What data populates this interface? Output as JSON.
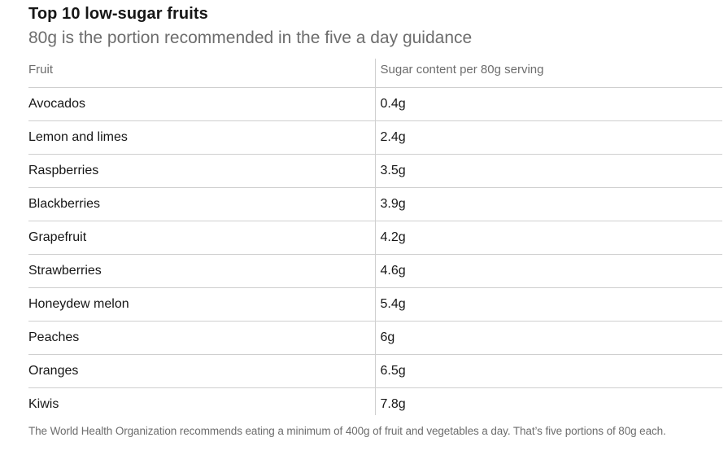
{
  "colors": {
    "ink": "#161616",
    "muted": "#6d6d6d",
    "line": "#cfcfcf"
  },
  "header": {
    "title": "Top 10 low-sugar fruits",
    "subtitle": "80g is the portion recommended in the five a day guidance"
  },
  "table": {
    "columns": [
      "Fruit",
      "Sugar content per 80g serving"
    ],
    "rows": [
      {
        "fruit": "Avocados",
        "sugar": "0.4g"
      },
      {
        "fruit": "Lemon and limes",
        "sugar": "2.4g"
      },
      {
        "fruit": "Raspberries",
        "sugar": "3.5g"
      },
      {
        "fruit": "Blackberries",
        "sugar": "3.9g"
      },
      {
        "fruit": "Grapefruit",
        "sugar": "4.2g"
      },
      {
        "fruit": "Strawberries",
        "sugar": "4.6g"
      },
      {
        "fruit": "Honeydew melon",
        "sugar": "5.4g"
      },
      {
        "fruit": "Peaches",
        "sugar": "6g"
      },
      {
        "fruit": "Oranges",
        "sugar": "6.5g"
      },
      {
        "fruit": "Kiwis",
        "sugar": "7.8g"
      }
    ]
  },
  "footer": {
    "note": "The World Health Organization recommends eating a minimum of 400g of fruit and vegetables a day. That’s five portions of 80g each."
  },
  "chart_data": {
    "type": "table",
    "title": "Top 10 low-sugar fruits",
    "subtitle": "80g is the portion recommended in the five a day guidance",
    "columns": [
      "Fruit",
      "Sugar content per 80g serving"
    ],
    "categories": [
      "Avocados",
      "Lemon and limes",
      "Raspberries",
      "Blackberries",
      "Grapefruit",
      "Strawberries",
      "Honeydew melon",
      "Peaches",
      "Oranges",
      "Kiwis"
    ],
    "values": [
      0.4,
      2.4,
      3.5,
      3.9,
      4.2,
      4.6,
      5.4,
      6,
      6.5,
      7.8
    ],
    "unit": "g per 80g serving",
    "footnote": "The World Health Organization recommends eating a minimum of 400g of fruit and vegetables a day. That’s five portions of 80g each."
  }
}
